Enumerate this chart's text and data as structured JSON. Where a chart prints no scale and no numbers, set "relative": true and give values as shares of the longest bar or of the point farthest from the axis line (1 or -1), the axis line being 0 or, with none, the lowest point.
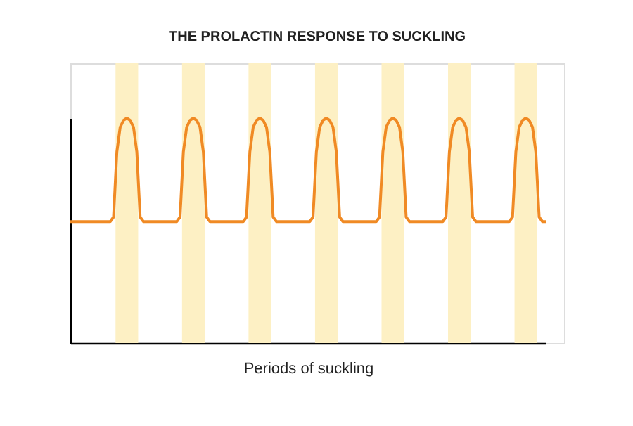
{
  "chart_data": {
    "type": "line",
    "title": "THE PROLACTIN RESPONSE TO SUCKLING",
    "xlabel": "Periods of suckling",
    "relative": true,
    "line_style": "solid",
    "categories": [
      null,
      null,
      null,
      null,
      null,
      null,
      null,
      null,
      null,
      null,
      null,
      null,
      null,
      null,
      null,
      null,
      null,
      null,
      null,
      null,
      null,
      null,
      null,
      null,
      null,
      null,
      null,
      null,
      null,
      null,
      null,
      null,
      null,
      null,
      null,
      null,
      null,
      null,
      null,
      null,
      null,
      null,
      null,
      null,
      null,
      null,
      null,
      null,
      null,
      null,
      null,
      null,
      null,
      null,
      null,
      null,
      null,
      null,
      null,
      null,
      null,
      null,
      null,
      null,
      null,
      null,
      null,
      null,
      null,
      null,
      null,
      null,
      null,
      null,
      null,
      null,
      null,
      null,
      null,
      null,
      null,
      null,
      null,
      null,
      null,
      null,
      null,
      null,
      null,
      null,
      null,
      null,
      null,
      null,
      null,
      null,
      null,
      null,
      null,
      null,
      null,
      null,
      null,
      null,
      null,
      null,
      null,
      null,
      null,
      null,
      null,
      null,
      null,
      null,
      null,
      null,
      null,
      null,
      null,
      null,
      null,
      null,
      null,
      null,
      null,
      null,
      null,
      null,
      null,
      null,
      null,
      null,
      null,
      null,
      null,
      null,
      null,
      null,
      null,
      null,
      null,
      null,
      null,
      null
    ],
    "series": [
      {
        "color": "#f08a24",
        "values": [
          0.54,
          0.54,
          0.54,
          0.54,
          0.54,
          0.54,
          0.54,
          0.54,
          0.54,
          0.54,
          0.54,
          0.54,
          0.54,
          0.56,
          0.85,
          0.96,
          0.99,
          1,
          0.99,
          0.96,
          0.85,
          0.56,
          0.54,
          0.54,
          0.54,
          0.54,
          0.54,
          0.54,
          0.54,
          0.54,
          0.54,
          0.54,
          0.54,
          0.56,
          0.85,
          0.96,
          0.99,
          1,
          0.99,
          0.96,
          0.85,
          0.56,
          0.54,
          0.54,
          0.54,
          0.54,
          0.54,
          0.54,
          0.54,
          0.54,
          0.54,
          0.54,
          0.54,
          0.56,
          0.85,
          0.96,
          0.99,
          1,
          0.99,
          0.96,
          0.85,
          0.56,
          0.54,
          0.54,
          0.54,
          0.54,
          0.54,
          0.54,
          0.54,
          0.54,
          0.54,
          0.54,
          0.54,
          0.56,
          0.85,
          0.96,
          0.99,
          1,
          0.99,
          0.96,
          0.85,
          0.56,
          0.54,
          0.54,
          0.54,
          0.54,
          0.54,
          0.54,
          0.54,
          0.54,
          0.54,
          0.54,
          0.54,
          0.56,
          0.85,
          0.96,
          0.99,
          1,
          0.99,
          0.96,
          0.85,
          0.56,
          0.54,
          0.54,
          0.54,
          0.54,
          0.54,
          0.54,
          0.54,
          0.54,
          0.54,
          0.54,
          0.54,
          0.56,
          0.85,
          0.96,
          0.99,
          1,
          0.99,
          0.96,
          0.85,
          0.56,
          0.54,
          0.54,
          0.54,
          0.54,
          0.54,
          0.54,
          0.54,
          0.54,
          0.54,
          0.54,
          0.54,
          0.56,
          0.85,
          0.96,
          0.99,
          1,
          0.99,
          0.96,
          0.85,
          0.56,
          0.54,
          0.54
        ]
      }
    ]
  }
}
